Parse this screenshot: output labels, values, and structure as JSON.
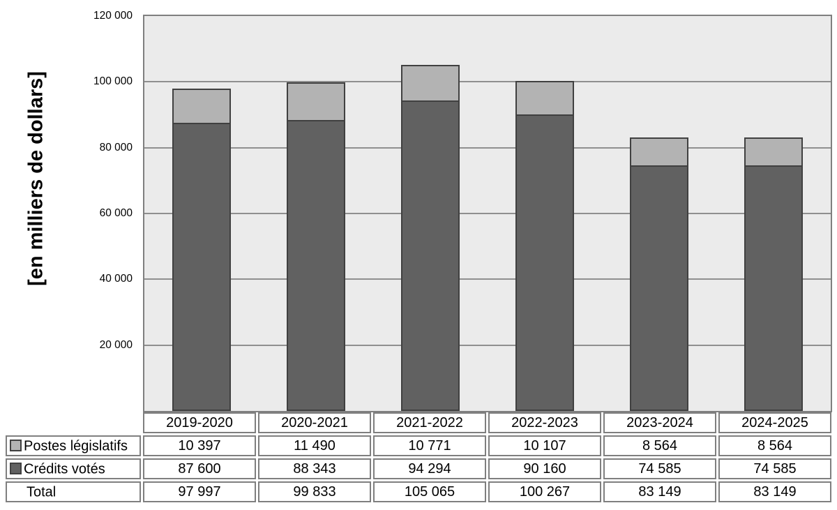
{
  "chart_data": {
    "type": "bar",
    "stacked": true,
    "title": "",
    "ylabel": "[en milliers de dollars]",
    "xlabel": "",
    "ylim": [
      0,
      120000
    ],
    "ytick_step": 20000,
    "grid": true,
    "legend_position": "table-left",
    "plot_bg": "#ebebeb",
    "gridline_color": "#8f8f8f",
    "bar_border_color": "#404040",
    "categories": [
      "2019-2020",
      "2020-2021",
      "2021-2022",
      "2022-2023",
      "2023-2024",
      "2024-2025"
    ],
    "series": [
      {
        "name": "Postes législatifs",
        "color": "#b3b3b3",
        "values": [
          10397,
          11490,
          10771,
          10107,
          8564,
          8564
        ]
      },
      {
        "name": "Crédits votés",
        "color": "#616161",
        "values": [
          87600,
          88343,
          94294,
          90160,
          74585,
          74585
        ]
      }
    ],
    "totals": [
      97997,
      99833,
      105065,
      100267,
      83149,
      83149
    ],
    "yticks": [
      {
        "value": 120000,
        "label": "120 000"
      },
      {
        "value": 100000,
        "label": "100 000"
      },
      {
        "value": 80000,
        "label": "80 000"
      },
      {
        "value": 60000,
        "label": "60 000"
      },
      {
        "value": 40000,
        "label": "40 000"
      },
      {
        "value": 20000,
        "label": "20 000"
      }
    ]
  },
  "table": {
    "header": [
      "2019-2020",
      "2020-2021",
      "2021-2022",
      "2022-2023",
      "2023-2024",
      "2024-2025"
    ],
    "rows": [
      {
        "label": "Postes législatifs",
        "legend_color": "#b3b3b3",
        "values": [
          "10 397",
          "11 490",
          "10 771",
          "10 107",
          "8 564",
          "8 564"
        ]
      },
      {
        "label": "Crédits votés",
        "legend_color": "#616161",
        "values": [
          "87 600",
          "88 343",
          "94 294",
          "90 160",
          "74 585",
          "74 585"
        ]
      },
      {
        "label": "Total",
        "legend_color": null,
        "values": [
          "97 997",
          "99 833",
          "105 065",
          "100 267",
          "83 149",
          "83 149"
        ]
      }
    ]
  }
}
